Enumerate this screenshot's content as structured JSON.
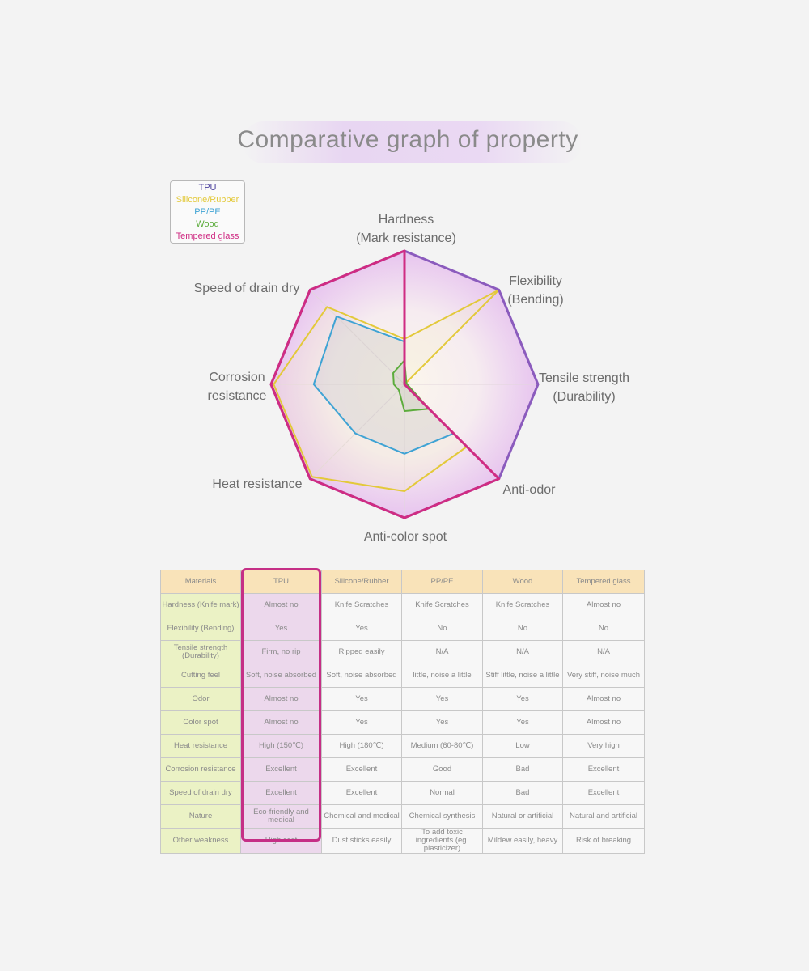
{
  "title": "Comparative graph of property",
  "legend": [
    {
      "name": "TPU",
      "color": "#4a3f9c"
    },
    {
      "name": "Silicone/Rubber",
      "color": "#e3c93a"
    },
    {
      "name": "PP/PE",
      "color": "#3fa3d4"
    },
    {
      "name": "Wood",
      "color": "#5cac3c"
    },
    {
      "name": "Tempered glass",
      "color": "#cf2c83"
    }
  ],
  "chart_data": {
    "type": "radar",
    "title": "Comparative graph of property",
    "axes": [
      [
        "Hardness",
        "(Mark resistance)"
      ],
      [
        "Flexibility",
        "(Bending)"
      ],
      [
        "Tensile strength",
        "(Durability)"
      ],
      [
        "Anti-odor"
      ],
      [
        "Anti-color spot"
      ],
      [
        "Heat resistance"
      ],
      [
        "Corrosion",
        "resistance"
      ],
      [
        "Speed of drain dry"
      ]
    ],
    "max": 5,
    "series": [
      {
        "name": "TPU",
        "color": "#8b5bbd",
        "values": [
          5,
          5,
          5,
          5,
          5,
          5,
          5,
          5
        ]
      },
      {
        "name": "Silicone/Rubber",
        "color": "#e3c93a",
        "values": [
          1.7,
          5,
          0,
          3.3,
          4,
          4.9,
          4.9,
          4.1
        ]
      },
      {
        "name": "PP/PE",
        "color": "#3fa3d4",
        "values": [
          1.6,
          0,
          0,
          2.6,
          2.6,
          2.6,
          3.4,
          3.6
        ]
      },
      {
        "name": "Wood",
        "color": "#5cac3c",
        "values": [
          0.9,
          0.1,
          0.1,
          1.3,
          1.0,
          0.3,
          0.4,
          0.6
        ]
      },
      {
        "name": "Tempered glass",
        "color": "#cf2c83",
        "values": [
          5,
          0,
          0,
          5,
          5,
          5,
          5,
          5
        ]
      }
    ]
  },
  "table": {
    "headers": [
      "Materials",
      "TPU",
      "Silicone/Rubber",
      "PP/PE",
      "Wood",
      "Tempered glass"
    ],
    "rows": [
      [
        "Hardness (Knife mark)",
        "Almost no",
        "Knife Scratches",
        "Knife Scratches",
        "Knife Scratches",
        "Almost no"
      ],
      [
        "Flexibility (Bending)",
        "Yes",
        "Yes",
        "No",
        "No",
        "No"
      ],
      [
        "Tensile strength (Durability)",
        "Firm, no rip",
        "Ripped easily",
        "N/A",
        "N/A",
        "N/A"
      ],
      [
        "Cutting feel",
        "Soft, noise absorbed",
        "Soft, noise absorbed",
        "little, noise a little",
        "Stiff little, noise a little",
        "Very stiff, noise much"
      ],
      [
        "Odor",
        "Almost no",
        "Yes",
        "Yes",
        "Yes",
        "Almost no"
      ],
      [
        "Color spot",
        "Almost no",
        "Yes",
        "Yes",
        "Yes",
        "Almost no"
      ],
      [
        "Heat resistance",
        "High (150℃)",
        "High (180℃)",
        "Medium (60-80℃)",
        "Low",
        "Very high"
      ],
      [
        "Corrosion resistance",
        "Excellent",
        "Excellent",
        "Good",
        "Bad",
        "Excellent"
      ],
      [
        "Speed of drain dry",
        "Excellent",
        "Excellent",
        "Normal",
        "Bad",
        "Excellent"
      ],
      [
        "Nature",
        "Eco-friendly and medical",
        "Chemical and medical",
        "Chemical synthesis",
        "Natural or artificial",
        "Natural and artificial"
      ],
      [
        "Other weakness",
        "High cost",
        "Dust sticks easily",
        "To add toxic ingredients (eg. plasticizer)",
        "Mildew easily, heavy",
        "Risk of breaking"
      ]
    ]
  }
}
